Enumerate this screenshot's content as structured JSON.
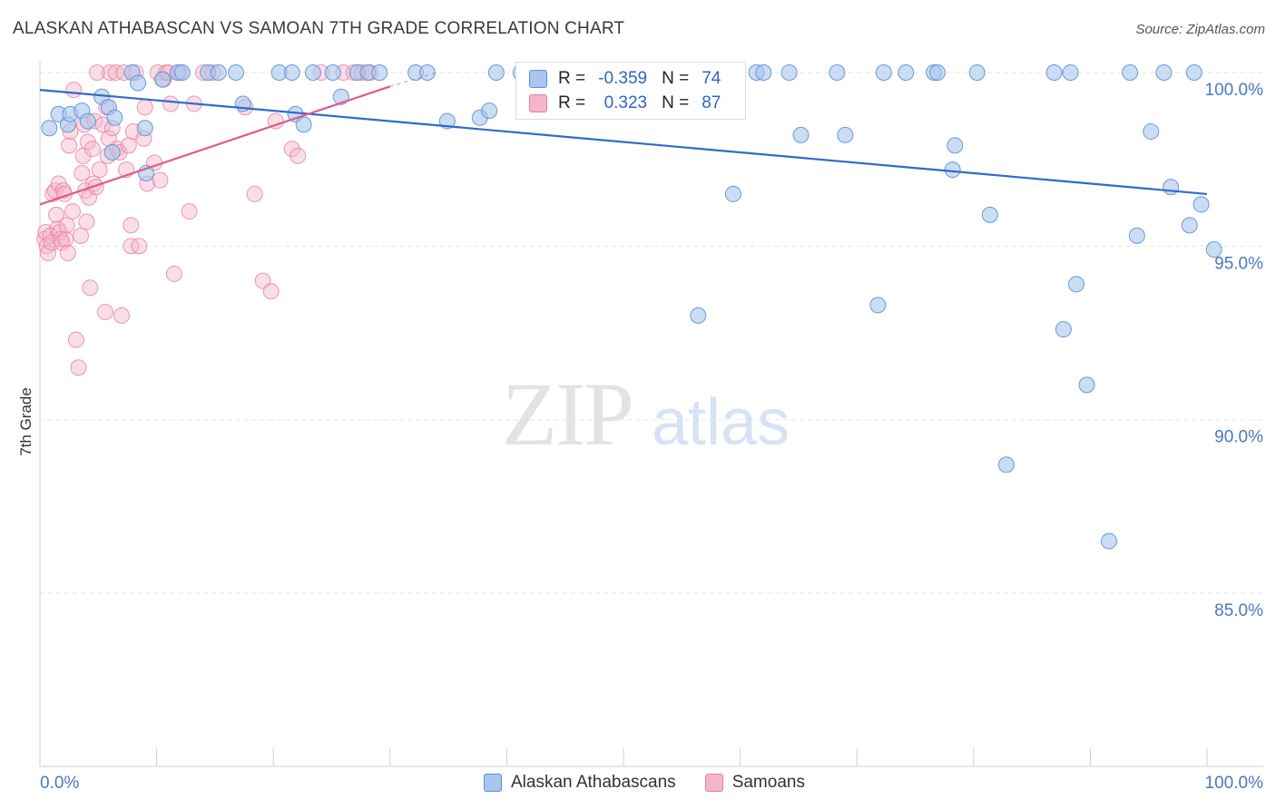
{
  "title": "ALASKAN ATHABASCAN VS SAMOAN 7TH GRADE CORRELATION CHART",
  "source": "Source: ZipAtlas.com",
  "watermark": {
    "zip": "ZIP",
    "atlas": "atlas"
  },
  "colors": {
    "blue_fill": "#a9c6ec",
    "blue_stroke": "#5b8fd6",
    "blue_line": "#2f6bc9",
    "pink_fill": "#f5b6c9",
    "pink_stroke": "#e77fa0",
    "pink_line": "#e05b87",
    "grid": "#e6e6e6",
    "axis_text": "#4a78c2"
  },
  "legend": {
    "r_label": "R =",
    "n_label": "N =",
    "blue": {
      "r": "-0.359",
      "n": "74"
    },
    "pink": {
      "r": "0.323",
      "n": "87"
    }
  },
  "bottom_legend": {
    "blue": "Alaskan Athabascans",
    "pink": "Samoans"
  },
  "chart_data": {
    "type": "scatter",
    "title": "ALASKAN ATHABASCAN VS SAMOAN 7TH GRADE CORRELATION CHART",
    "xlabel": "",
    "ylabel": "7th Grade",
    "xlim": [
      0,
      100
    ],
    "ylim": [
      80.0,
      100.5
    ],
    "x_tick_labels": [
      "0.0%",
      "100.0%"
    ],
    "y_ticks": [
      85,
      90,
      95,
      100
    ],
    "y_tick_labels": [
      "85.0%",
      "90.0%",
      "95.0%",
      "100.0%"
    ],
    "series": [
      {
        "name": "Alaskan Athabascans",
        "color": "blue",
        "r": -0.359,
        "n": 74,
        "trend": {
          "x": [
            0,
            100
          ],
          "y": [
            99.5,
            96.5
          ]
        },
        "points": [
          [
            0.8,
            98.4
          ],
          [
            1.6,
            98.8
          ],
          [
            2.4,
            98.5
          ],
          [
            2.6,
            98.8
          ],
          [
            3.6,
            98.9
          ],
          [
            4.1,
            98.6
          ],
          [
            5.3,
            99.3
          ],
          [
            5.9,
            99.0
          ],
          [
            6.4,
            98.7
          ],
          [
            6.2,
            97.7
          ],
          [
            7.9,
            100.0
          ],
          [
            8.4,
            99.7
          ],
          [
            9.0,
            98.4
          ],
          [
            9.1,
            97.1
          ],
          [
            10.5,
            99.8
          ],
          [
            11.8,
            100.0
          ],
          [
            12.2,
            100.0
          ],
          [
            14.4,
            100.0
          ],
          [
            15.3,
            100.0
          ],
          [
            16.8,
            100.0
          ],
          [
            17.4,
            99.1
          ],
          [
            20.5,
            100.0
          ],
          [
            21.6,
            100.0
          ],
          [
            21.9,
            98.8
          ],
          [
            22.6,
            98.5
          ],
          [
            23.4,
            100.0
          ],
          [
            25.1,
            100.0
          ],
          [
            25.8,
            99.3
          ],
          [
            27.2,
            100.0
          ],
          [
            28.1,
            100.0
          ],
          [
            29.1,
            100.0
          ],
          [
            32.2,
            100.0
          ],
          [
            33.2,
            100.0
          ],
          [
            34.9,
            98.6
          ],
          [
            37.7,
            98.7
          ],
          [
            38.5,
            98.9
          ],
          [
            39.1,
            100.0
          ],
          [
            41.2,
            100.0
          ],
          [
            46.0,
            100.0
          ],
          [
            48.9,
            100.0
          ],
          [
            50.2,
            100.0
          ],
          [
            53.2,
            100.0
          ],
          [
            56.4,
            93.0
          ],
          [
            59.4,
            96.5
          ],
          [
            61.4,
            100.0
          ],
          [
            62.0,
            100.0
          ],
          [
            64.2,
            100.0
          ],
          [
            65.2,
            98.2
          ],
          [
            68.3,
            100.0
          ],
          [
            69.0,
            98.2
          ],
          [
            71.8,
            93.3
          ],
          [
            72.3,
            100.0
          ],
          [
            74.2,
            100.0
          ],
          [
            76.6,
            100.0
          ],
          [
            76.9,
            100.0
          ],
          [
            78.2,
            97.2
          ],
          [
            78.4,
            97.9
          ],
          [
            80.3,
            100.0
          ],
          [
            81.4,
            95.9
          ],
          [
            82.8,
            88.7
          ],
          [
            86.9,
            100.0
          ],
          [
            87.7,
            92.6
          ],
          [
            88.3,
            100.0
          ],
          [
            88.8,
            93.9
          ],
          [
            89.7,
            91.0
          ],
          [
            91.6,
            86.5
          ],
          [
            93.4,
            100.0
          ],
          [
            94.0,
            95.3
          ],
          [
            95.2,
            98.3
          ],
          [
            96.3,
            100.0
          ],
          [
            96.9,
            96.7
          ],
          [
            98.5,
            95.6
          ],
          [
            98.9,
            100.0
          ],
          [
            99.5,
            96.2
          ],
          [
            100.6,
            94.9
          ]
        ]
      },
      {
        "name": "Samoans",
        "color": "pink",
        "r": 0.323,
        "n": 87,
        "trend": {
          "x": [
            0,
            30
          ],
          "y": [
            96.2,
            99.6
          ]
        },
        "trend_dashed": {
          "x": [
            30,
            34
          ],
          "y": [
            99.6,
            100.0
          ]
        },
        "points": [
          [
            0.4,
            95.2
          ],
          [
            0.5,
            95.4
          ],
          [
            0.6,
            95.0
          ],
          [
            0.7,
            94.8
          ],
          [
            0.9,
            95.3
          ],
          [
            1.0,
            95.1
          ],
          [
            1.1,
            96.5
          ],
          [
            1.3,
            96.6
          ],
          [
            1.4,
            95.9
          ],
          [
            1.5,
            95.5
          ],
          [
            1.6,
            96.8
          ],
          [
            1.7,
            95.4
          ],
          [
            1.8,
            95.2
          ],
          [
            1.9,
            95.1
          ],
          [
            2.0,
            96.6
          ],
          [
            2.1,
            96.5
          ],
          [
            2.2,
            95.2
          ],
          [
            2.3,
            95.6
          ],
          [
            2.4,
            94.8
          ],
          [
            2.5,
            97.9
          ],
          [
            2.6,
            98.3
          ],
          [
            2.8,
            96.0
          ],
          [
            2.9,
            99.5
          ],
          [
            3.1,
            92.3
          ],
          [
            3.3,
            91.5
          ],
          [
            3.5,
            95.3
          ],
          [
            3.6,
            97.1
          ],
          [
            3.7,
            97.6
          ],
          [
            3.8,
            98.5
          ],
          [
            3.9,
            96.6
          ],
          [
            4.0,
            95.7
          ],
          [
            4.1,
            98.0
          ],
          [
            4.2,
            96.4
          ],
          [
            4.3,
            93.8
          ],
          [
            4.5,
            97.8
          ],
          [
            4.6,
            96.8
          ],
          [
            4.7,
            98.6
          ],
          [
            4.8,
            96.7
          ],
          [
            4.9,
            100.0
          ],
          [
            5.1,
            97.2
          ],
          [
            5.4,
            98.5
          ],
          [
            5.6,
            93.1
          ],
          [
            5.7,
            99.0
          ],
          [
            5.8,
            97.6
          ],
          [
            5.9,
            98.1
          ],
          [
            6.0,
            100.0
          ],
          [
            6.2,
            98.4
          ],
          [
            6.5,
            100.0
          ],
          [
            6.6,
            97.8
          ],
          [
            6.8,
            97.7
          ],
          [
            7.0,
            93.0
          ],
          [
            7.2,
            100.0
          ],
          [
            7.4,
            97.2
          ],
          [
            7.6,
            97.9
          ],
          [
            7.8,
            95.6
          ],
          [
            7.8,
            95.0
          ],
          [
            8.0,
            98.3
          ],
          [
            8.2,
            100.0
          ],
          [
            8.5,
            95.0
          ],
          [
            8.9,
            98.1
          ],
          [
            9.0,
            99.0
          ],
          [
            9.2,
            96.8
          ],
          [
            9.8,
            97.4
          ],
          [
            10.1,
            100.0
          ],
          [
            10.3,
            96.9
          ],
          [
            10.6,
            99.8
          ],
          [
            10.8,
            100.0
          ],
          [
            11.0,
            100.0
          ],
          [
            11.2,
            99.1
          ],
          [
            11.5,
            94.2
          ],
          [
            12.0,
            100.0
          ],
          [
            12.8,
            96.0
          ],
          [
            13.2,
            99.1
          ],
          [
            14.0,
            100.0
          ],
          [
            14.8,
            100.0
          ],
          [
            17.6,
            99.0
          ],
          [
            18.4,
            96.5
          ],
          [
            19.1,
            94.0
          ],
          [
            19.8,
            93.7
          ],
          [
            20.2,
            98.6
          ],
          [
            21.6,
            97.8
          ],
          [
            22.1,
            97.6
          ],
          [
            24.1,
            100.0
          ],
          [
            26.0,
            100.0
          ],
          [
            26.9,
            100.0
          ],
          [
            27.6,
            100.0
          ],
          [
            28.3,
            100.0
          ]
        ]
      }
    ]
  }
}
